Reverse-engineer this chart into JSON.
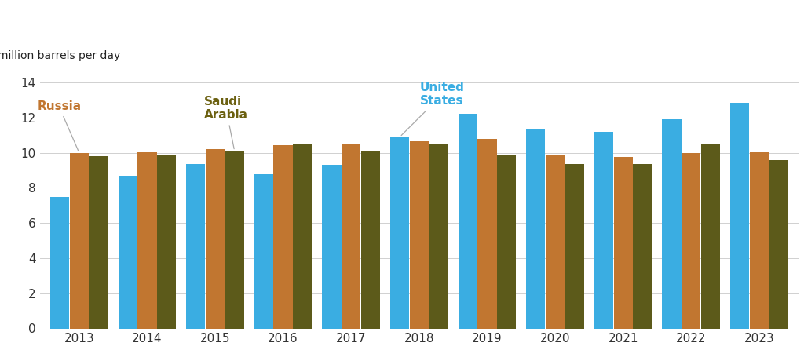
{
  "years": [
    2013,
    2014,
    2015,
    2016,
    2017,
    2018,
    2019,
    2020,
    2021,
    2022,
    2023
  ],
  "united_states": [
    7.5,
    8.7,
    9.35,
    8.8,
    9.3,
    10.9,
    12.2,
    11.35,
    11.2,
    11.9,
    12.85
  ],
  "russia": [
    10.0,
    10.05,
    10.2,
    10.45,
    10.5,
    10.65,
    10.8,
    9.9,
    9.75,
    10.0,
    10.05
  ],
  "saudi_arabia": [
    9.8,
    9.85,
    10.1,
    10.5,
    10.1,
    10.5,
    9.9,
    9.35,
    9.35,
    10.5,
    9.6
  ],
  "us_color": "#3AADE2",
  "russia_color": "#C17630",
  "saudi_color": "#5C5A1A",
  "ylabel": "million barrels per day",
  "ylim": [
    0,
    14
  ],
  "yticks": [
    0,
    2,
    4,
    6,
    8,
    10,
    12,
    14
  ],
  "background_color": "#FFFFFF",
  "russia_label": "Russia",
  "saudi_label": "Saudi\nArabia",
  "us_label": "United\nStates",
  "russia_label_color": "#C17630",
  "saudi_label_color": "#6B6010",
  "us_label_color": "#3AADE2",
  "russia_annotation_year": 2013,
  "saudi_annotation_year": 2015,
  "us_annotation_year": 2018,
  "bar_width": 0.28,
  "bar_gap": 0.005
}
